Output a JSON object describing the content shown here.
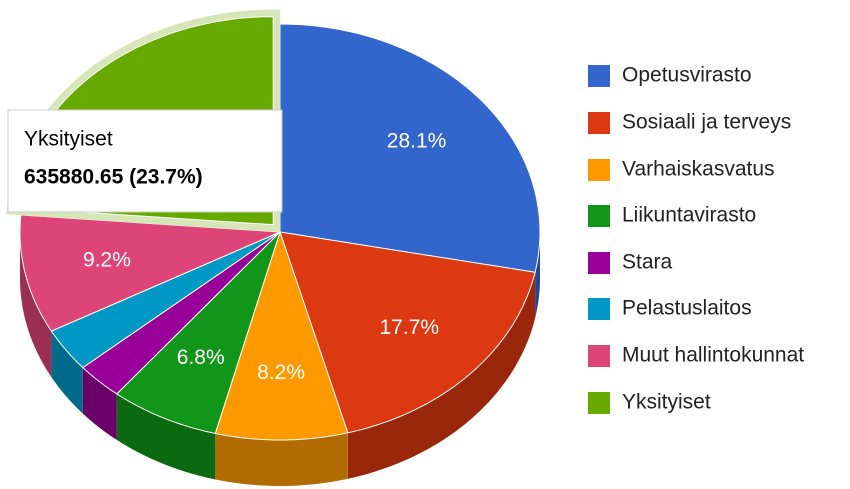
{
  "chart_data": {
    "type": "pie3d",
    "categories": [
      "Opetusvirasto",
      "Sosiaali ja terveys",
      "Varhaiskasvatus",
      "Liikuntavirasto",
      "Stara",
      "Pelastuslaitos",
      "Muut hallintokunnat",
      "Yksityiset"
    ],
    "values": [
      28.1,
      17.7,
      8.2,
      6.8,
      2.9,
      3.4,
      9.2,
      23.7
    ],
    "value_labels": [
      "28.1%",
      "17.7%",
      "8.2%",
      "6.8%",
      null,
      null,
      "9.2%",
      null
    ],
    "colors": [
      "#3366cc",
      "#dc3912",
      "#ff9900",
      "#109618",
      "#990099",
      "#0099c6",
      "#dd4477",
      "#66aa00"
    ],
    "selected": 7,
    "tooltip": {
      "title": "Yksityiset",
      "text": "635880.65 (23.7%)"
    }
  }
}
